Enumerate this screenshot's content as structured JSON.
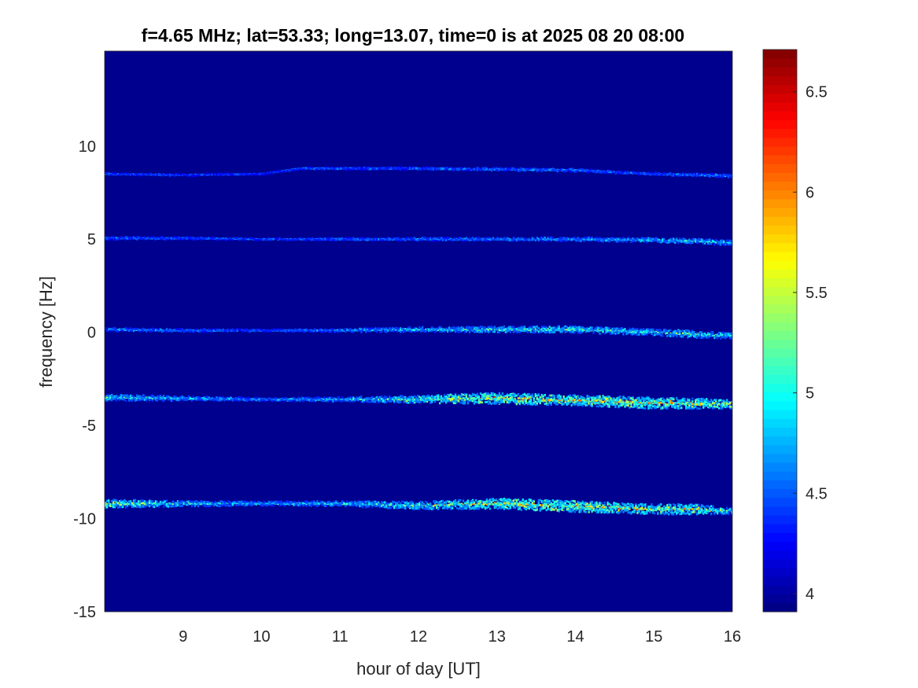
{
  "chart_data": {
    "type": "heatmap",
    "title": "f=4.65 MHz;  lat=53.33; long=13.07, time=0 is at 2025 08 20 08:00",
    "xlabel": "hour of day [UT]",
    "ylabel": "frequency [Hz]",
    "xlim": [
      8,
      16
    ],
    "ylim": [
      -15,
      15.1
    ],
    "xticks": [
      "9",
      "10",
      "11",
      "12",
      "13",
      "14",
      "15",
      "16"
    ],
    "yticks": [
      "-15",
      "-10",
      "-5",
      "0",
      "5",
      "10"
    ],
    "colormap": "jet",
    "clim": [
      3.91,
      6.71
    ],
    "colorbar_ticks": [
      "4",
      "4.5",
      "5",
      "5.5",
      "6",
      "6.5"
    ],
    "background_color": "#00008f",
    "traces": [
      {
        "hours": [
          8,
          9,
          10,
          10.5,
          11,
          12,
          13,
          14,
          15,
          16
        ],
        "frequency": [
          8.5,
          8.45,
          8.5,
          8.8,
          8.8,
          8.8,
          8.75,
          8.7,
          8.5,
          8.4
        ],
        "peak_value": [
          4.7,
          4.6,
          4.5,
          4.7,
          4.8,
          4.8,
          4.9,
          4.9,
          4.8,
          5.0
        ]
      },
      {
        "hours": [
          8,
          9,
          10,
          11,
          12,
          13,
          14,
          15,
          15.5,
          16
        ],
        "frequency": [
          5.05,
          5.05,
          5.0,
          5.0,
          5.0,
          5.0,
          5.0,
          4.95,
          4.9,
          4.8
        ],
        "peak_value": [
          4.9,
          4.8,
          4.7,
          4.8,
          4.9,
          5.0,
          5.1,
          5.2,
          5.3,
          5.3
        ]
      },
      {
        "hours": [
          8,
          9,
          10,
          11,
          12,
          13,
          14,
          15,
          15.5,
          16
        ],
        "frequency": [
          0.15,
          0.1,
          0.1,
          0.1,
          0.15,
          0.15,
          0.15,
          0.0,
          -0.1,
          -0.2
        ],
        "peak_value": [
          5.0,
          4.9,
          4.8,
          5.0,
          5.3,
          5.5,
          5.6,
          5.5,
          5.7,
          5.4
        ]
      },
      {
        "hours": [
          8,
          9,
          10,
          11,
          12,
          13,
          14,
          15,
          16
        ],
        "frequency": [
          -3.5,
          -3.55,
          -3.6,
          -3.6,
          -3.6,
          -3.55,
          -3.65,
          -3.8,
          -3.85
        ],
        "peak_value": [
          5.6,
          5.2,
          5.0,
          5.2,
          5.8,
          6.4,
          6.3,
          6.5,
          6.0
        ]
      },
      {
        "hours": [
          8,
          9,
          10,
          11,
          12,
          13,
          14,
          15,
          15.5,
          16
        ],
        "frequency": [
          -9.2,
          -9.2,
          -9.2,
          -9.2,
          -9.3,
          -9.2,
          -9.35,
          -9.5,
          -9.5,
          -9.6
        ],
        "peak_value": [
          6.0,
          5.4,
          5.2,
          5.3,
          5.8,
          6.3,
          6.4,
          6.2,
          6.3,
          5.5
        ]
      }
    ]
  }
}
